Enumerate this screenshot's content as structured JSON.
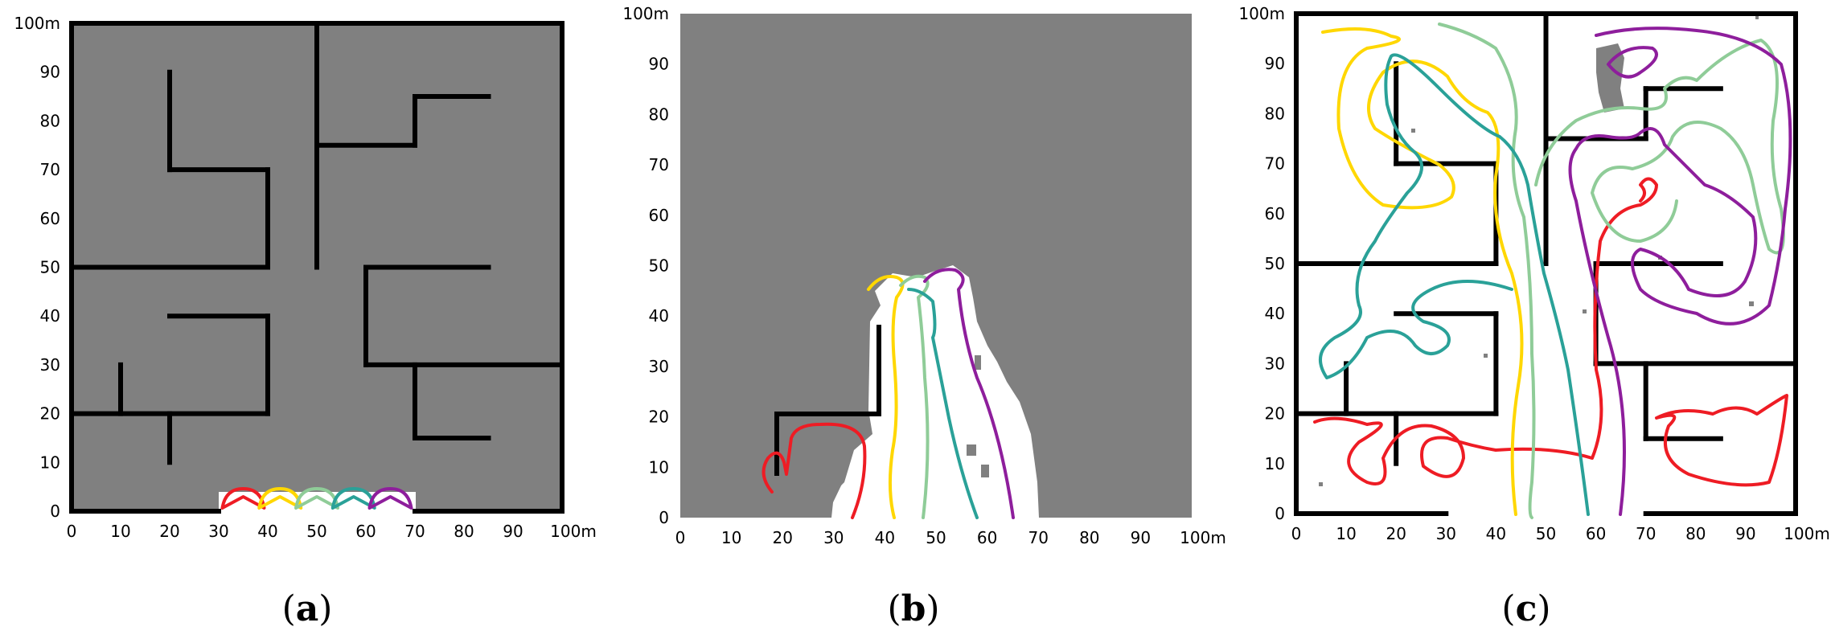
{
  "colors": {
    "background": "#ffffff",
    "unexplored": "#808080",
    "explored": "#ffffff",
    "wall": "#000000",
    "robots": [
      "#ee1c24",
      "#ffd700",
      "#8fcc98",
      "#2aa198",
      "#8e1e9c"
    ]
  },
  "axis_ticks": [
    "0",
    "10",
    "20",
    "30",
    "40",
    "50",
    "60",
    "70",
    "80",
    "90",
    "100m"
  ],
  "panels": [
    {
      "id": "a",
      "caption_open": "(",
      "caption_letter": "a",
      "caption_close": ")"
    },
    {
      "id": "b",
      "caption_open": "(",
      "caption_letter": "b",
      "caption_close": ")"
    },
    {
      "id": "c",
      "caption_open": "(",
      "caption_letter": "c",
      "caption_close": ")"
    }
  ],
  "maze_walls": [
    [
      [
        0,
        0
      ],
      [
        0,
        100
      ]
    ],
    [
      [
        0,
        100
      ],
      [
        100,
        100
      ]
    ],
    [
      [
        100,
        100
      ],
      [
        100,
        0
      ]
    ],
    [
      [
        0,
        0
      ],
      [
        30,
        0
      ]
    ],
    [
      [
        70,
        0
      ],
      [
        100,
        0
      ]
    ],
    [
      [
        50,
        100
      ],
      [
        50,
        50
      ]
    ],
    [
      [
        20,
        90
      ],
      [
        20,
        70
      ]
    ],
    [
      [
        20,
        70
      ],
      [
        40,
        70
      ]
    ],
    [
      [
        40,
        70
      ],
      [
        40,
        50
      ]
    ],
    [
      [
        0,
        50
      ],
      [
        40,
        50
      ]
    ],
    [
      [
        50,
        75
      ],
      [
        70,
        75
      ]
    ],
    [
      [
        70,
        75
      ],
      [
        70,
        85
      ]
    ],
    [
      [
        70,
        85
      ],
      [
        85,
        85
      ]
    ],
    [
      [
        60,
        50
      ],
      [
        85,
        50
      ]
    ],
    [
      [
        60,
        50
      ],
      [
        60,
        30
      ]
    ],
    [
      [
        60,
        30
      ],
      [
        100,
        30
      ]
    ],
    [
      [
        70,
        30
      ],
      [
        70,
        15
      ]
    ],
    [
      [
        70,
        15
      ],
      [
        85,
        15
      ]
    ],
    [
      [
        0,
        20
      ],
      [
        40,
        20
      ]
    ],
    [
      [
        20,
        40
      ],
      [
        40,
        40
      ]
    ],
    [
      [
        40,
        40
      ],
      [
        40,
        20
      ]
    ],
    [
      [
        10,
        30
      ],
      [
        10,
        20
      ]
    ],
    [
      [
        20,
        20
      ],
      [
        20,
        10
      ]
    ]
  ]
}
